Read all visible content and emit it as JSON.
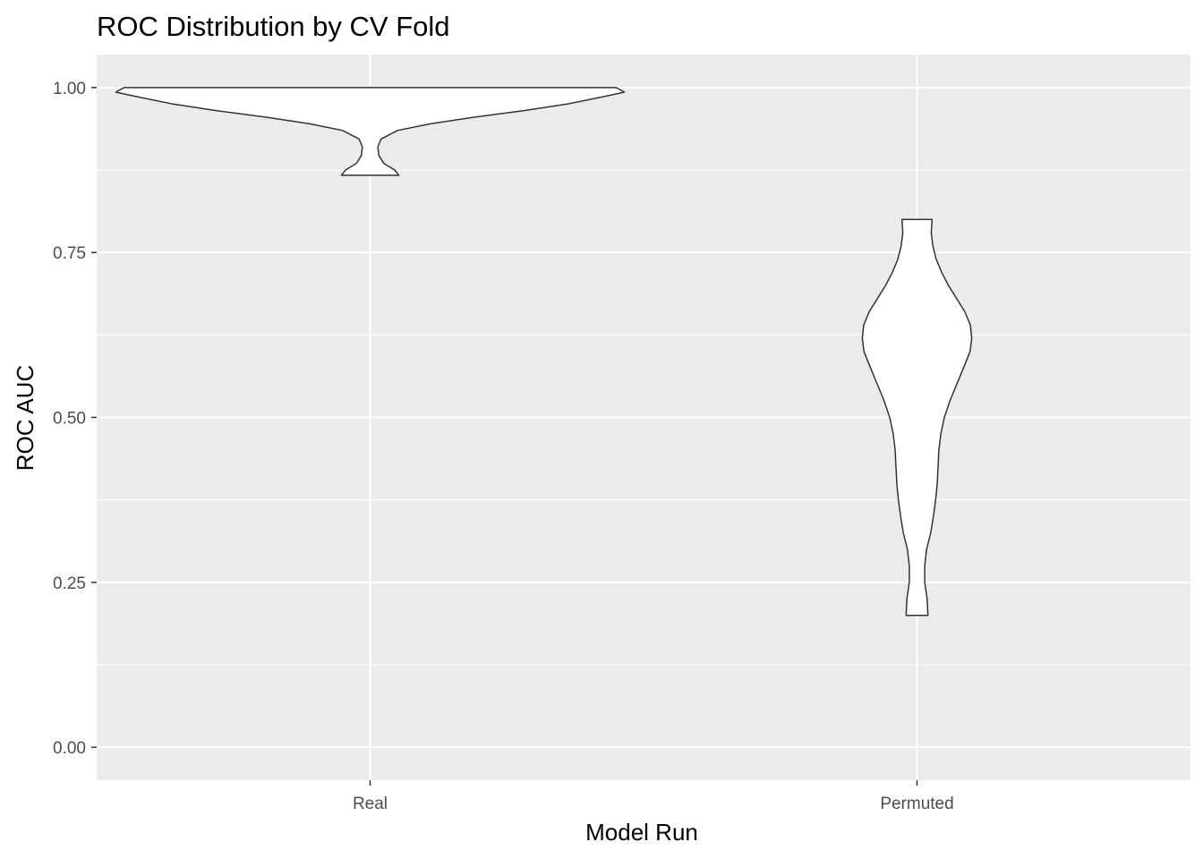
{
  "chart_data": {
    "type": "violin",
    "title": "ROC Distribution by CV Fold",
    "xlabel": "Model Run",
    "ylabel": "ROC AUC",
    "categories": [
      "Real",
      "Permuted"
    ],
    "ylim": [
      -0.05,
      1.05
    ],
    "yticks": [
      {
        "value": 0.0,
        "label": "0.00"
      },
      {
        "value": 0.25,
        "label": "0.25"
      },
      {
        "value": 0.5,
        "label": "0.50"
      },
      {
        "value": 0.75,
        "label": "0.75"
      },
      {
        "value": 1.0,
        "label": "1.00"
      }
    ],
    "grid": true,
    "background": "#ebebeb",
    "grid_color": "#ffffff",
    "violin_fill": "#ffffff",
    "violin_outline": "#333333",
    "series": [
      {
        "category": "Real",
        "range": [
          0.867,
          1.0
        ],
        "density_profile": [
          {
            "y": 0.867,
            "w": 0.105
          },
          {
            "y": 0.875,
            "w": 0.09
          },
          {
            "y": 0.885,
            "w": 0.05
          },
          {
            "y": 0.897,
            "w": 0.032
          },
          {
            "y": 0.91,
            "w": 0.028
          },
          {
            "y": 0.922,
            "w": 0.04
          },
          {
            "y": 0.935,
            "w": 0.1
          },
          {
            "y": 0.945,
            "w": 0.22
          },
          {
            "y": 0.955,
            "w": 0.38
          },
          {
            "y": 0.965,
            "w": 0.56
          },
          {
            "y": 0.975,
            "w": 0.72
          },
          {
            "y": 0.985,
            "w": 0.84
          },
          {
            "y": 0.993,
            "w": 0.93
          },
          {
            "y": 1.0,
            "w": 0.9
          }
        ]
      },
      {
        "category": "Permuted",
        "range": [
          0.2,
          0.8
        ],
        "density_profile": [
          {
            "y": 0.2,
            "w": 0.04
          },
          {
            "y": 0.225,
            "w": 0.037
          },
          {
            "y": 0.25,
            "w": 0.028
          },
          {
            "y": 0.275,
            "w": 0.028
          },
          {
            "y": 0.3,
            "w": 0.035
          },
          {
            "y": 0.325,
            "w": 0.05
          },
          {
            "y": 0.35,
            "w": 0.06
          },
          {
            "y": 0.375,
            "w": 0.068
          },
          {
            "y": 0.4,
            "w": 0.074
          },
          {
            "y": 0.425,
            "w": 0.077
          },
          {
            "y": 0.45,
            "w": 0.08
          },
          {
            "y": 0.475,
            "w": 0.087
          },
          {
            "y": 0.5,
            "w": 0.1
          },
          {
            "y": 0.525,
            "w": 0.12
          },
          {
            "y": 0.55,
            "w": 0.145
          },
          {
            "y": 0.575,
            "w": 0.17
          },
          {
            "y": 0.6,
            "w": 0.194
          },
          {
            "y": 0.62,
            "w": 0.2
          },
          {
            "y": 0.64,
            "w": 0.195
          },
          {
            "y": 0.66,
            "w": 0.175
          },
          {
            "y": 0.68,
            "w": 0.145
          },
          {
            "y": 0.7,
            "w": 0.115
          },
          {
            "y": 0.72,
            "w": 0.09
          },
          {
            "y": 0.74,
            "w": 0.07
          },
          {
            "y": 0.76,
            "w": 0.058
          },
          {
            "y": 0.78,
            "w": 0.052
          },
          {
            "y": 0.8,
            "w": 0.055
          }
        ]
      }
    ]
  }
}
